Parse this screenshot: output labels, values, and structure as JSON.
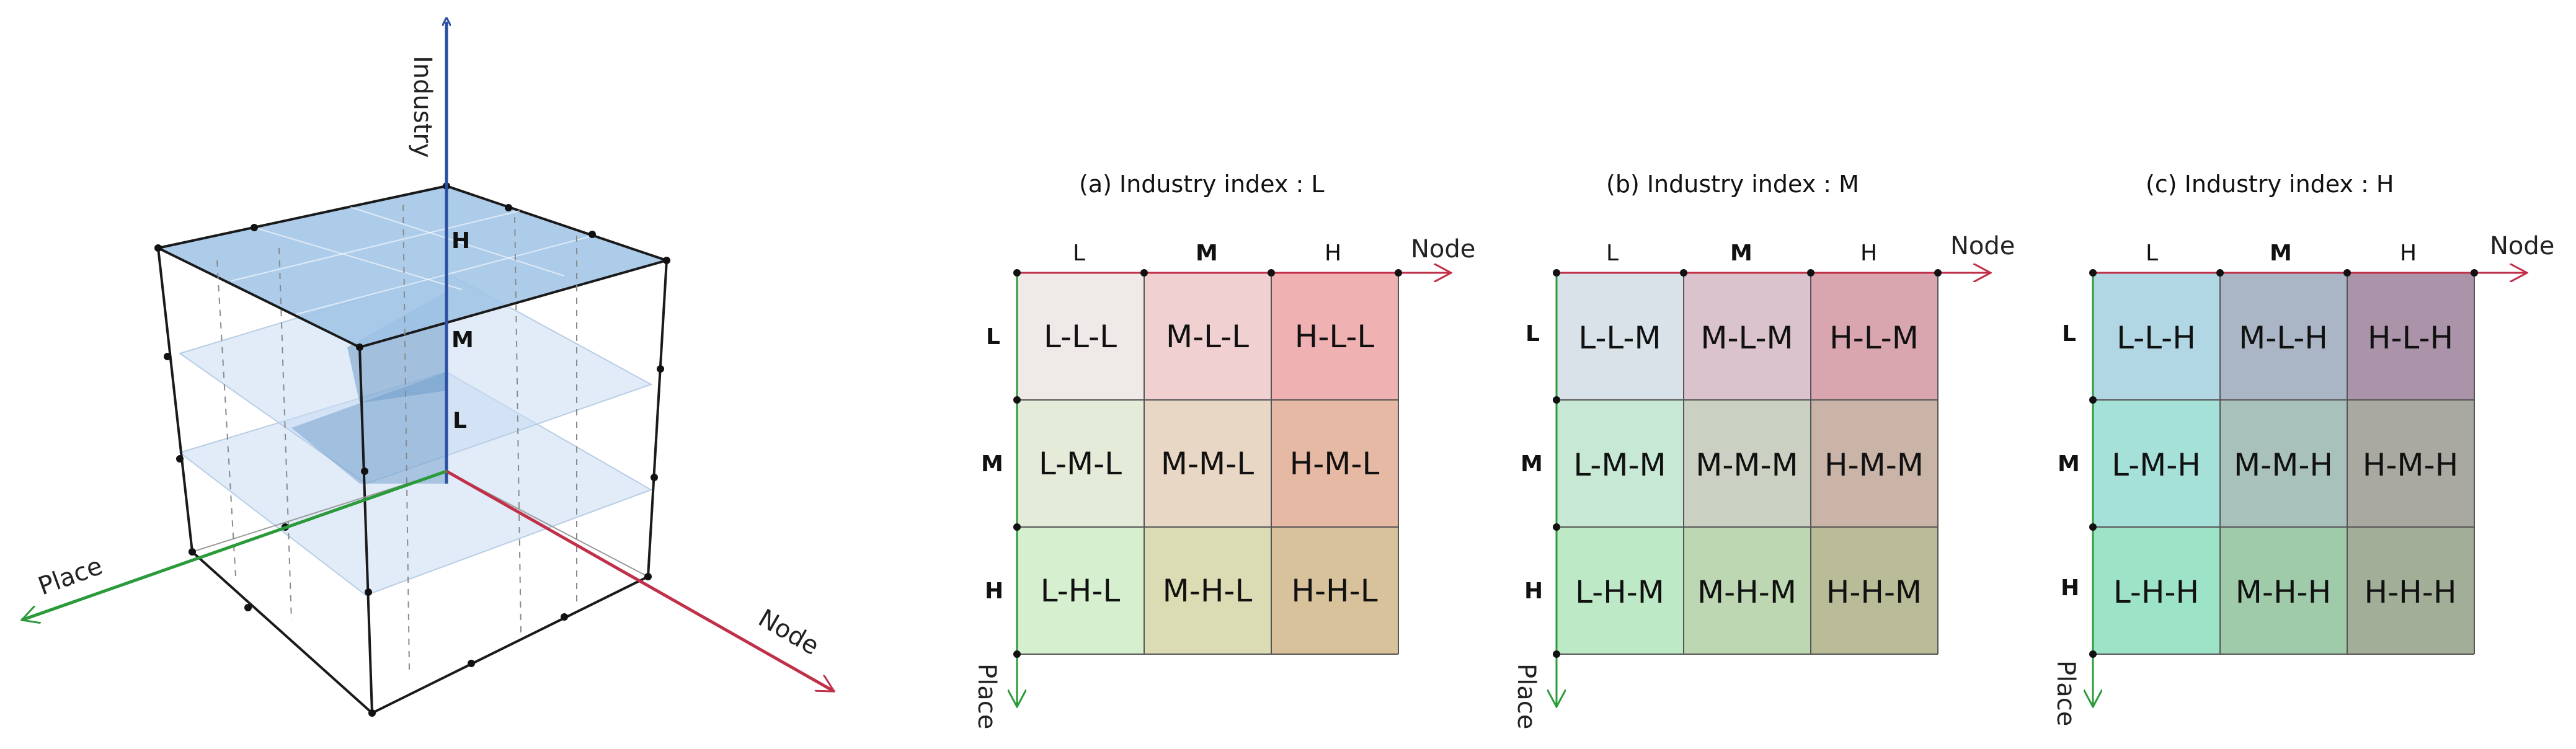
{
  "cube": {
    "axis_industry": "Industry",
    "axis_place": "Place",
    "axis_node": "Node",
    "levels": [
      "L",
      "M",
      "H"
    ]
  },
  "panels": [
    {
      "title": "(a) Industry index : L",
      "node_axis_label": "Node",
      "place_axis_label": "Place",
      "col_labels": [
        "L",
        "M",
        "H"
      ],
      "row_labels": [
        "L",
        "M",
        "H"
      ],
      "cells": [
        [
          "L-L-L",
          "M-L-L",
          "H-L-L"
        ],
        [
          "L-M-L",
          "M-M-L",
          "H-M-L"
        ],
        [
          "L-H-L",
          "M-H-L",
          "H-H-L"
        ]
      ],
      "colors": [
        [
          "#efe9e7",
          "#f0d0d0",
          "#efb1b1"
        ],
        [
          "#e4ecd9",
          "#e7d7c4",
          "#e6b9a4"
        ],
        [
          "#d6efcf",
          "#dcdcb4",
          "#d8c29c"
        ]
      ]
    },
    {
      "title": "(b) Industry index : M",
      "node_axis_label": "Node",
      "place_axis_label": "Place",
      "col_labels": [
        "L",
        "M",
        "H"
      ],
      "row_labels": [
        "L",
        "M",
        "H"
      ],
      "cells": [
        [
          "L-L-M",
          "M-L-M",
          "H-L-M"
        ],
        [
          "L-M-M",
          "M-M-M",
          "H-M-M"
        ],
        [
          "L-H-M",
          "M-H-M",
          "H-H-M"
        ]
      ],
      "colors": [
        [
          "#d8e2e8",
          "#dbc3cd",
          "#d9a6b0"
        ],
        [
          "#c8e8d6",
          "#cbd1c2",
          "#c9b4a7"
        ],
        [
          "#bde9c6",
          "#bdd7b2",
          "#b9bc97"
        ]
      ]
    },
    {
      "title": "(c) Industry index : H",
      "node_axis_label": "Node",
      "place_axis_label": "Place",
      "col_labels": [
        "L",
        "M",
        "H"
      ],
      "row_labels": [
        "L",
        "M",
        "H"
      ],
      "cells": [
        [
          "L-L-H",
          "M-L-H",
          "H-L-H"
        ],
        [
          "L-M-H",
          "M-M-H",
          "H-M-H"
        ],
        [
          "L-H-H",
          "M-H-H",
          "H-H-H"
        ]
      ],
      "colors": [
        [
          "#b0d7e3",
          "#aab6c6",
          "#ab93a9"
        ],
        [
          "#a5e1d9",
          "#a8c2bb",
          "#a9a8a1"
        ],
        [
          "#9de3c7",
          "#9fcbab",
          "#a3ae98"
        ]
      ]
    }
  ],
  "colors": {
    "industry_axis": "#2a4fa0",
    "node_axis": "#c03048",
    "place_axis": "#2a9a3a",
    "cube_fill_top": "#9fc3e6",
    "cube_fill_slice": "#c9dcf2",
    "cube_fill_dark": "#6f9cc9"
  }
}
